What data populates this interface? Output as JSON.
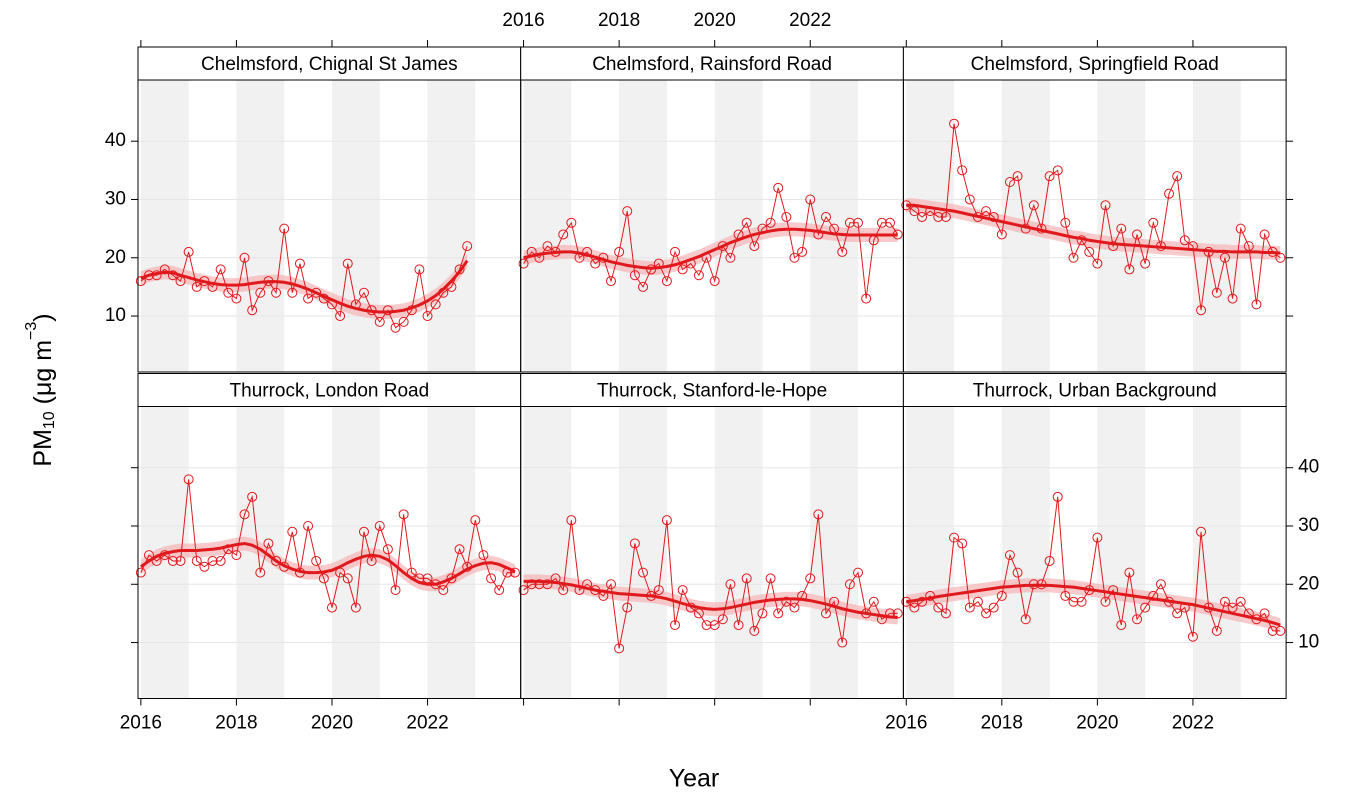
{
  "chart_data": {
    "type": "line",
    "xlabel": "Year",
    "ylabel_parts": [
      "PM",
      "10",
      " (μg m",
      "−3",
      ")"
    ],
    "xlim": [
      2015.94,
      2023.95
    ],
    "ylim": [
      0.4,
      50.5
    ],
    "xticks": [
      2016,
      2018,
      2020,
      2022
    ],
    "yticks": [
      10,
      20,
      30,
      40
    ],
    "grid": true,
    "color": "#e0191d",
    "band_color": "#f6b3b5",
    "trend_band": 1.2,
    "x": [
      2016,
      2016.17,
      2016.33,
      2016.5,
      2016.67,
      2016.83,
      2017,
      2017.17,
      2017.33,
      2017.5,
      2017.67,
      2017.83,
      2018,
      2018.17,
      2018.33,
      2018.5,
      2018.67,
      2018.83,
      2019,
      2019.17,
      2019.33,
      2019.5,
      2019.67,
      2019.83,
      2020,
      2020.17,
      2020.33,
      2020.5,
      2020.67,
      2020.83,
      2021,
      2021.17,
      2021.33,
      2021.5,
      2021.67,
      2021.83,
      2022,
      2022.17,
      2022.33,
      2022.5,
      2022.67,
      2022.83,
      2023,
      2023.17,
      2023.33,
      2023.5,
      2023.67,
      2023.83
    ],
    "panels": [
      {
        "title": "Chelmsford, Chignal St James",
        "values": [
          16,
          17,
          17,
          18,
          17,
          16,
          21,
          15,
          16,
          15,
          18,
          14,
          13,
          20,
          11,
          14,
          16,
          14,
          25,
          14,
          19,
          13,
          14,
          13,
          12,
          10,
          19,
          12,
          14,
          11,
          9,
          11,
          8,
          9,
          11,
          18,
          10,
          12,
          14,
          15,
          18,
          22,
          null,
          null,
          null,
          null,
          null,
          null
        ],
        "trend": [
          16.5,
          17,
          17.3,
          17.5,
          17.4,
          17,
          16.6,
          16.2,
          15.9,
          15.6,
          15.4,
          15.3,
          15.3,
          15.4,
          15.6,
          15.8,
          15.9,
          15.9,
          15.8,
          15.5,
          15.1,
          14.6,
          14,
          13.4,
          12.8,
          12.2,
          11.7,
          11.3,
          11,
          10.8,
          10.7,
          10.7,
          10.8,
          11,
          11.4,
          11.9,
          12.6,
          13.5,
          14.6,
          16,
          17.6,
          19.5,
          null,
          null,
          null,
          null,
          null,
          null
        ]
      },
      {
        "title": "Chelmsford, Rainsford Road",
        "values": [
          19,
          21,
          20,
          22,
          21,
          24,
          26,
          20,
          21,
          19,
          20,
          16,
          21,
          28,
          17,
          15,
          18,
          19,
          16,
          21,
          18,
          19,
          17,
          20,
          16,
          22,
          20,
          24,
          26,
          22,
          25,
          26,
          32,
          27,
          20,
          21,
          30,
          24,
          27,
          25,
          21,
          26,
          26,
          13,
          23,
          26,
          26,
          24
        ],
        "trend": [
          20,
          20.3,
          20.6,
          20.8,
          20.9,
          21,
          21,
          20.8,
          20.5,
          20.1,
          19.7,
          19.3,
          19,
          18.7,
          18.5,
          18.3,
          18.2,
          18.3,
          18.5,
          18.8,
          19.2,
          19.7,
          20.2,
          20.8,
          21.4,
          22,
          22.6,
          23.1,
          23.6,
          24,
          24.3,
          24.6,
          24.8,
          24.9,
          24.9,
          24.8,
          24.7,
          24.5,
          24.3,
          24.1,
          24,
          23.9,
          23.9,
          23.9,
          23.9,
          23.9,
          23.9,
          23.9
        ]
      },
      {
        "title": "Chelmsford, Springfield Road",
        "values": [
          29,
          28,
          27,
          28,
          27,
          27,
          43,
          35,
          30,
          27,
          28,
          27,
          24,
          33,
          34,
          25,
          29,
          25,
          34,
          35,
          26,
          20,
          23,
          21,
          19,
          29,
          22,
          25,
          18,
          24,
          19,
          26,
          22,
          31,
          34,
          23,
          22,
          11,
          21,
          14,
          20,
          13,
          25,
          22,
          12,
          24,
          21,
          20
        ],
        "trend": [
          29,
          29,
          28.8,
          28.6,
          28.4,
          28.2,
          28,
          27.7,
          27.4,
          27.1,
          26.8,
          26.5,
          26.2,
          25.9,
          25.6,
          25.3,
          25,
          24.7,
          24.4,
          24.1,
          23.8,
          23.5,
          23.3,
          23,
          22.8,
          22.6,
          22.4,
          22.3,
          22.2,
          22.1,
          22,
          21.9,
          21.8,
          21.7,
          21.6,
          21.5,
          21.4,
          21.3,
          21.2,
          21.1,
          21.1,
          21,
          21,
          21,
          21,
          20.9,
          20.9,
          20.8
        ]
      },
      {
        "title": "Thurrock, London Road",
        "values": [
          22,
          25,
          24,
          25,
          24,
          24,
          38,
          24,
          23,
          24,
          24,
          26,
          25,
          32,
          35,
          22,
          27,
          24,
          23,
          29,
          22,
          30,
          24,
          21,
          16,
          22,
          21,
          16,
          29,
          24,
          30,
          26,
          19,
          32,
          22,
          21,
          21,
          20,
          19,
          21,
          26,
          23,
          31,
          25,
          21,
          19,
          22,
          22
        ],
        "trend": [
          23,
          24,
          24.8,
          25.3,
          25.6,
          25.8,
          25.8,
          25.8,
          25.9,
          26,
          26.2,
          26.5,
          26.8,
          27,
          26.7,
          26,
          25,
          24,
          23.2,
          22.6,
          22.2,
          22,
          22,
          22.1,
          22.4,
          23,
          23.7,
          24.3,
          24.8,
          25,
          24.8,
          24.2,
          23.2,
          22,
          21,
          20.3,
          20,
          20,
          20.4,
          21,
          21.8,
          22.6,
          23.2,
          23.6,
          23.7,
          23.4,
          22.8,
          22.2
        ]
      },
      {
        "title": "Thurrock, Stanford-le-Hope",
        "values": [
          19,
          20,
          20,
          20,
          21,
          19,
          31,
          19,
          20,
          19,
          18,
          20,
          9,
          16,
          27,
          22,
          18,
          19,
          31,
          13,
          19,
          16,
          15,
          13,
          13,
          14,
          20,
          13,
          21,
          12,
          15,
          21,
          15,
          17,
          16,
          18,
          21,
          32,
          15,
          17,
          10,
          20,
          22,
          15,
          17,
          14,
          15,
          15
        ],
        "trend": [
          20.5,
          20.5,
          20.5,
          20.4,
          20.3,
          20.1,
          19.9,
          19.6,
          19.3,
          19,
          18.8,
          18.6,
          18.4,
          18.3,
          18.2,
          18.1,
          18,
          17.8,
          17.5,
          17.1,
          16.7,
          16.3,
          16,
          15.8,
          15.7,
          15.8,
          16,
          16.3,
          16.6,
          16.9,
          17.1,
          17.3,
          17.4,
          17.5,
          17.5,
          17.4,
          17.2,
          16.9,
          16.6,
          16.2,
          15.8,
          15.5,
          15.2,
          15,
          14.8,
          14.6,
          14.4,
          14.3
        ]
      },
      {
        "title": "Thurrock, Urban Background",
        "values": [
          17,
          16,
          17,
          18,
          16,
          15,
          28,
          27,
          16,
          17,
          15,
          16,
          18,
          25,
          22,
          14,
          20,
          20,
          24,
          35,
          18,
          17,
          17,
          19,
          28,
          17,
          19,
          13,
          22,
          14,
          16,
          18,
          20,
          17,
          15,
          16,
          11,
          29,
          16,
          12,
          17,
          16,
          17,
          15,
          14,
          15,
          12,
          12
        ],
        "trend": [
          17,
          17.2,
          17.4,
          17.6,
          17.9,
          18.1,
          18.3,
          18.5,
          18.7,
          18.9,
          19.1,
          19.3,
          19.5,
          19.6,
          19.7,
          19.8,
          19.8,
          19.8,
          19.8,
          19.7,
          19.6,
          19.5,
          19.3,
          19.1,
          18.9,
          18.7,
          18.5,
          18.3,
          18.1,
          17.9,
          17.7,
          17.5,
          17.3,
          17.1,
          16.9,
          16.7,
          16.5,
          16.2,
          15.9,
          15.6,
          15.3,
          15,
          14.7,
          14.4,
          14.1,
          13.8,
          13.4,
          13
        ]
      }
    ]
  }
}
